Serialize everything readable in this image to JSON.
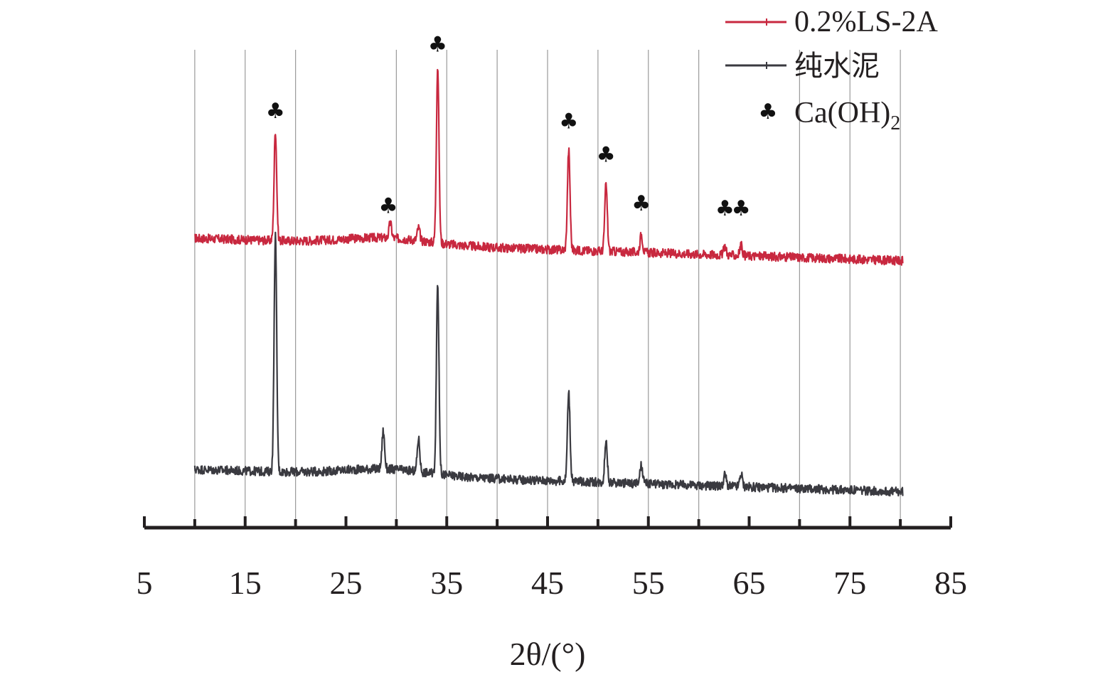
{
  "chart_data": {
    "type": "line",
    "title": "",
    "xlabel": "2θ/(°)",
    "ylabel": "",
    "xlim": [
      5,
      85
    ],
    "x_ticks": [
      "5",
      "15",
      "25",
      "35",
      "45",
      "55",
      "65",
      "75",
      "85"
    ],
    "vertical_gridlines": [
      10,
      15,
      20,
      30,
      35,
      40,
      45,
      50,
      55,
      60,
      70,
      75,
      80
    ],
    "grid": "vertical",
    "legend_position": "top-right",
    "legend": [
      {
        "label": "0.2%LS-2A",
        "kind": "line",
        "color": "#c8283f"
      },
      {
        "label": "纯水泥",
        "kind": "line",
        "color": "#3a3a40"
      },
      {
        "label": "Ca(OH)",
        "subscript": "2",
        "kind": "marker",
        "symbol": "♣"
      }
    ],
    "series": [
      {
        "name": "0.2%LS-2A",
        "color": "#c8283f",
        "offset": 2.0,
        "peaks": [
          {
            "x": 18.0,
            "y": 0.86
          },
          {
            "x": 29.4,
            "y": 0.12
          },
          {
            "x": 32.2,
            "y": 0.1
          },
          {
            "x": 34.1,
            "y": 1.38
          },
          {
            "x": 47.1,
            "y": 0.78
          },
          {
            "x": 50.8,
            "y": 0.52
          },
          {
            "x": 54.3,
            "y": 0.14
          },
          {
            "x": 62.6,
            "y": 0.07
          },
          {
            "x": 64.2,
            "y": 0.08
          }
        ]
      },
      {
        "name": "纯水泥",
        "color": "#3a3a40",
        "offset": 0.0,
        "peaks": [
          {
            "x": 18.0,
            "y": 1.85
          },
          {
            "x": 28.7,
            "y": 0.3
          },
          {
            "x": 32.2,
            "y": 0.26
          },
          {
            "x": 34.1,
            "y": 1.48
          },
          {
            "x": 47.1,
            "y": 0.7
          },
          {
            "x": 50.8,
            "y": 0.33
          },
          {
            "x": 54.3,
            "y": 0.14
          },
          {
            "x": 62.6,
            "y": 0.09
          },
          {
            "x": 64.2,
            "y": 0.1
          }
        ]
      }
    ],
    "annotations": {
      "symbol": "♣",
      "meaning": "Ca(OH)2",
      "x": [
        18.0,
        29.2,
        34.1,
        47.1,
        50.8,
        54.3,
        62.6,
        64.2
      ]
    }
  }
}
